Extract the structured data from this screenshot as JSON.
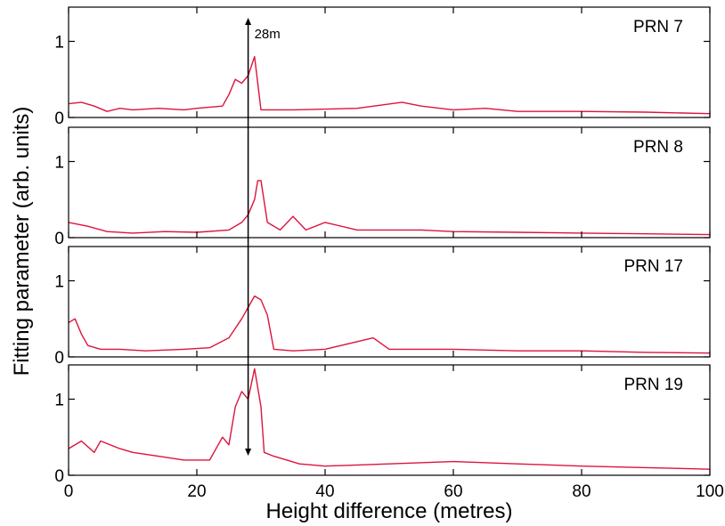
{
  "chart_data": {
    "type": "line",
    "xlabel": "Height difference (metres)",
    "ylabel": "Fitting parameter (arb. units)",
    "xlim": [
      0,
      100
    ],
    "ylim": [
      0,
      1.45
    ],
    "x_ticks": [
      0,
      20,
      40,
      60,
      80,
      100
    ],
    "y_ticks": [
      0,
      1
    ],
    "line_color": "#dc143c",
    "annotation": {
      "x": 28,
      "label": "28m"
    },
    "panels": [
      {
        "label": "PRN 7",
        "series": [
          {
            "x": 0,
            "y": 0.18
          },
          {
            "x": 2,
            "y": 0.2
          },
          {
            "x": 4,
            "y": 0.15
          },
          {
            "x": 6,
            "y": 0.08
          },
          {
            "x": 8,
            "y": 0.12
          },
          {
            "x": 10,
            "y": 0.1
          },
          {
            "x": 14,
            "y": 0.12
          },
          {
            "x": 18,
            "y": 0.1
          },
          {
            "x": 20,
            "y": 0.12
          },
          {
            "x": 24,
            "y": 0.15
          },
          {
            "x": 25,
            "y": 0.3
          },
          {
            "x": 26,
            "y": 0.5
          },
          {
            "x": 27,
            "y": 0.45
          },
          {
            "x": 28,
            "y": 0.55
          },
          {
            "x": 29,
            "y": 0.8
          },
          {
            "x": 30,
            "y": 0.1
          },
          {
            "x": 35,
            "y": 0.1
          },
          {
            "x": 45,
            "y": 0.12
          },
          {
            "x": 52,
            "y": 0.2
          },
          {
            "x": 55,
            "y": 0.15
          },
          {
            "x": 60,
            "y": 0.1
          },
          {
            "x": 65,
            "y": 0.12
          },
          {
            "x": 70,
            "y": 0.08
          },
          {
            "x": 80,
            "y": 0.08
          },
          {
            "x": 90,
            "y": 0.07
          },
          {
            "x": 100,
            "y": 0.05
          }
        ]
      },
      {
        "label": "PRN 8",
        "series": [
          {
            "x": 0,
            "y": 0.2
          },
          {
            "x": 3,
            "y": 0.15
          },
          {
            "x": 6,
            "y": 0.08
          },
          {
            "x": 10,
            "y": 0.06
          },
          {
            "x": 15,
            "y": 0.08
          },
          {
            "x": 20,
            "y": 0.07
          },
          {
            "x": 25,
            "y": 0.1
          },
          {
            "x": 27,
            "y": 0.2
          },
          {
            "x": 28,
            "y": 0.3
          },
          {
            "x": 29,
            "y": 0.5
          },
          {
            "x": 29.5,
            "y": 0.75
          },
          {
            "x": 30,
            "y": 0.75
          },
          {
            "x": 31,
            "y": 0.2
          },
          {
            "x": 33,
            "y": 0.1
          },
          {
            "x": 35,
            "y": 0.28
          },
          {
            "x": 37,
            "y": 0.1
          },
          {
            "x": 40,
            "y": 0.2
          },
          {
            "x": 45,
            "y": 0.1
          },
          {
            "x": 55,
            "y": 0.1
          },
          {
            "x": 60,
            "y": 0.08
          },
          {
            "x": 70,
            "y": 0.07
          },
          {
            "x": 80,
            "y": 0.06
          },
          {
            "x": 90,
            "y": 0.05
          },
          {
            "x": 100,
            "y": 0.04
          }
        ]
      },
      {
        "label": "PRN 17",
        "series": [
          {
            "x": 0,
            "y": 0.45
          },
          {
            "x": 1,
            "y": 0.5
          },
          {
            "x": 2,
            "y": 0.3
          },
          {
            "x": 3,
            "y": 0.15
          },
          {
            "x": 5,
            "y": 0.1
          },
          {
            "x": 8,
            "y": 0.1
          },
          {
            "x": 12,
            "y": 0.08
          },
          {
            "x": 18,
            "y": 0.1
          },
          {
            "x": 22,
            "y": 0.12
          },
          {
            "x": 25,
            "y": 0.25
          },
          {
            "x": 27,
            "y": 0.5
          },
          {
            "x": 28,
            "y": 0.65
          },
          {
            "x": 29,
            "y": 0.8
          },
          {
            "x": 30,
            "y": 0.75
          },
          {
            "x": 31,
            "y": 0.55
          },
          {
            "x": 32,
            "y": 0.1
          },
          {
            "x": 35,
            "y": 0.08
          },
          {
            "x": 40,
            "y": 0.1
          },
          {
            "x": 47.5,
            "y": 0.25
          },
          {
            "x": 50,
            "y": 0.1
          },
          {
            "x": 60,
            "y": 0.1
          },
          {
            "x": 70,
            "y": 0.08
          },
          {
            "x": 80,
            "y": 0.08
          },
          {
            "x": 90,
            "y": 0.06
          },
          {
            "x": 100,
            "y": 0.05
          }
        ]
      },
      {
        "label": "PRN 19",
        "series": [
          {
            "x": 0,
            "y": 0.35
          },
          {
            "x": 2,
            "y": 0.45
          },
          {
            "x": 4,
            "y": 0.3
          },
          {
            "x": 5,
            "y": 0.45
          },
          {
            "x": 8,
            "y": 0.35
          },
          {
            "x": 10,
            "y": 0.3
          },
          {
            "x": 14,
            "y": 0.25
          },
          {
            "x": 18,
            "y": 0.2
          },
          {
            "x": 22,
            "y": 0.2
          },
          {
            "x": 24,
            "y": 0.5
          },
          {
            "x": 25,
            "y": 0.4
          },
          {
            "x": 26,
            "y": 0.9
          },
          {
            "x": 27,
            "y": 1.1
          },
          {
            "x": 28,
            "y": 1.0
          },
          {
            "x": 29,
            "y": 1.4
          },
          {
            "x": 30,
            "y": 0.9
          },
          {
            "x": 30.5,
            "y": 0.3
          },
          {
            "x": 32,
            "y": 0.25
          },
          {
            "x": 36,
            "y": 0.15
          },
          {
            "x": 40,
            "y": 0.12
          },
          {
            "x": 50,
            "y": 0.15
          },
          {
            "x": 60,
            "y": 0.18
          },
          {
            "x": 70,
            "y": 0.15
          },
          {
            "x": 80,
            "y": 0.12
          },
          {
            "x": 90,
            "y": 0.1
          },
          {
            "x": 100,
            "y": 0.08
          }
        ]
      }
    ]
  }
}
